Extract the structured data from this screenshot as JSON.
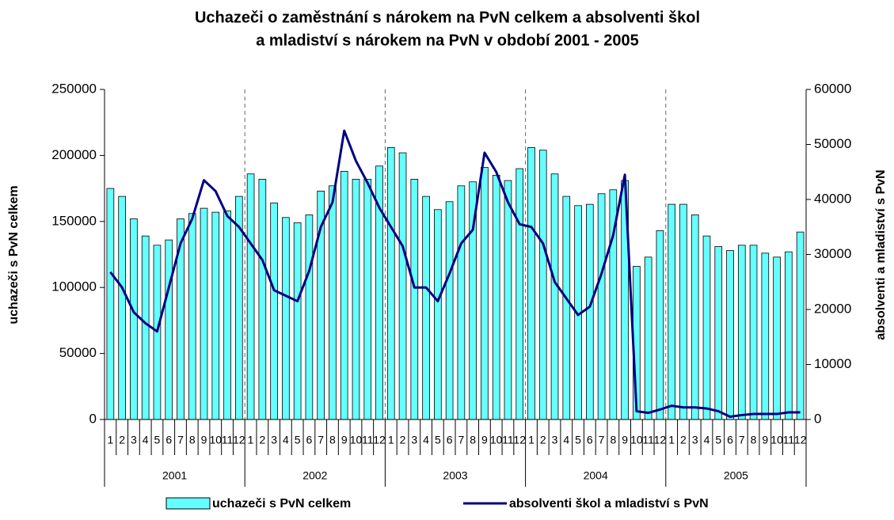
{
  "chart_data": {
    "type": "bar",
    "title": [
      "Uchazeči o zaměstnání s nárokem na PvN celkem a absolventi škol",
      "a mladiství s nárokem na PvN v období 2001 - 2005"
    ],
    "ylabel": "uchazeči s PvN celkem",
    "y2label": "absolventi a mladiství s PvN",
    "categories": [
      "1",
      "2",
      "3",
      "4",
      "5",
      "6",
      "7",
      "8",
      "9",
      "10",
      "11",
      "12",
      "1",
      "2",
      "3",
      "4",
      "5",
      "6",
      "7",
      "8",
      "9",
      "10",
      "11",
      "12",
      "1",
      "2",
      "3",
      "4",
      "5",
      "6",
      "7",
      "8",
      "9",
      "10",
      "11",
      "12",
      "1",
      "2",
      "3",
      "4",
      "5",
      "6",
      "7",
      "8",
      "9",
      "10",
      "11",
      "12",
      "1",
      "2",
      "3",
      "4",
      "5",
      "6",
      "7",
      "8",
      "9",
      "10",
      "11",
      "12"
    ],
    "years": [
      "2001",
      "2002",
      "2003",
      "2004",
      "2005"
    ],
    "series": [
      {
        "name": "uchazeči s PvN celkem",
        "type": "bar",
        "color": "#66ffff",
        "values": [
          175000,
          169000,
          152000,
          139000,
          132000,
          136000,
          152000,
          156000,
          160000,
          157000,
          158000,
          169000,
          186000,
          182000,
          164000,
          153000,
          149000,
          155000,
          173000,
          177000,
          188000,
          182000,
          182000,
          192000,
          206000,
          202000,
          182000,
          169000,
          159000,
          165000,
          177000,
          180000,
          191000,
          185000,
          181000,
          190000,
          206000,
          204000,
          186000,
          169000,
          162000,
          163000,
          171000,
          174000,
          181000,
          116000,
          123000,
          143000,
          163000,
          163000,
          155000,
          139000,
          131000,
          128000,
          132000,
          132000,
          126000,
          123000,
          127000,
          142000
        ]
      },
      {
        "name": "absolventi škol a mladiství s PvN",
        "type": "line",
        "axis": "y2",
        "color": "#000080",
        "values": [
          26800,
          24000,
          19500,
          17500,
          16000,
          24000,
          32000,
          36500,
          43500,
          41500,
          37000,
          35000,
          32000,
          29000,
          23500,
          22500,
          21500,
          27000,
          35000,
          39500,
          52500,
          47000,
          43000,
          38500,
          35000,
          31500,
          24000,
          24000,
          21500,
          26500,
          32000,
          34500,
          48500,
          45000,
          39500,
          35500,
          35000,
          32000,
          25000,
          22000,
          19000,
          20500,
          26500,
          33500,
          44500,
          1500,
          1200,
          1800,
          2500,
          2200,
          2200,
          2000,
          1500,
          500,
          800,
          1000,
          1000,
          1000,
          1300,
          1300
        ]
      }
    ],
    "ylim": [
      0,
      250000
    ],
    "yticks": [
      0,
      50000,
      100000,
      150000,
      200000,
      250000
    ],
    "y2lim": [
      0,
      60000
    ],
    "y2ticks": [
      0,
      10000,
      20000,
      30000,
      40000,
      50000,
      60000
    ]
  }
}
